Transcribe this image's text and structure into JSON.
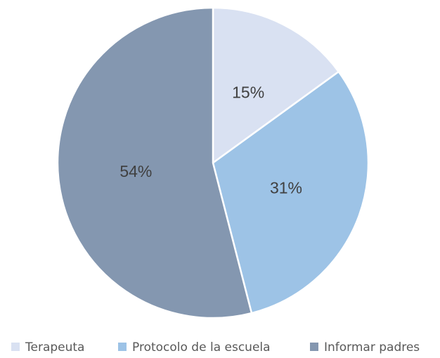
{
  "chart_data": {
    "type": "pie",
    "categories": [
      "Terapeuta",
      "Protocolo de la escuela",
      "Informar padres"
    ],
    "values": [
      15,
      31,
      54
    ],
    "value_labels": [
      "15%",
      "31%",
      "54%"
    ],
    "colors": [
      "#d9e1f2",
      "#9dc3e6",
      "#8497b0"
    ]
  }
}
